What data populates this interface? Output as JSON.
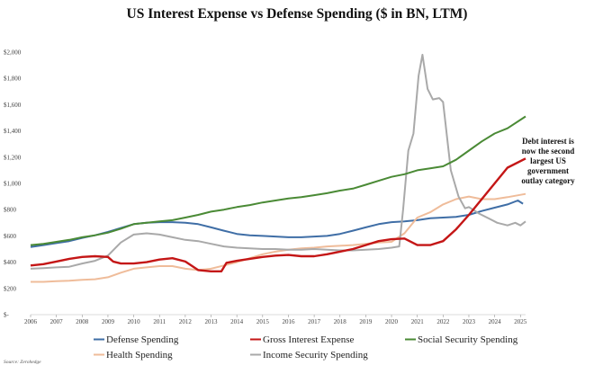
{
  "chart_data": {
    "type": "line",
    "title": "US Interest Expense vs Defense Spending ($ in BN, LTM)",
    "xlabel": "",
    "ylabel": "",
    "source": "Source: Zerohedge",
    "annotation": [
      "Debt interest is",
      "now the second",
      "largest US",
      "government",
      "outlay category"
    ],
    "xlim": [
      2006,
      2025.2
    ],
    "ylim": [
      0,
      2000
    ],
    "x_ticks": [
      "2006",
      "2007",
      "2008",
      "2009",
      "2010",
      "2011",
      "2012",
      "2013",
      "2014",
      "2015",
      "2016",
      "2017",
      "2018",
      "2019",
      "2020",
      "2021",
      "2022",
      "2023",
      "2024",
      "2025"
    ],
    "y_ticks": [
      {
        "v": 0,
        "label": "$-"
      },
      {
        "v": 200,
        "label": "$200"
      },
      {
        "v": 400,
        "label": "$400"
      },
      {
        "v": 600,
        "label": "$600"
      },
      {
        "v": 800,
        "label": "$800"
      },
      {
        "v": 1000,
        "label": "$1,000"
      },
      {
        "v": 1200,
        "label": "$1,200"
      },
      {
        "v": 1400,
        "label": "$1,400"
      },
      {
        "v": 1600,
        "label": "$1,600"
      },
      {
        "v": 1800,
        "label": "$1,800"
      },
      {
        "v": 2000,
        "label": "$2,000"
      }
    ],
    "grid": false,
    "legend_position": "bottom",
    "series": [
      {
        "name": "Defense Spending",
        "color": "#3f6ea6",
        "points": [
          [
            2006,
            515
          ],
          [
            2006.5,
            530
          ],
          [
            2007,
            545
          ],
          [
            2007.5,
            560
          ],
          [
            2008,
            585
          ],
          [
            2008.5,
            605
          ],
          [
            2009,
            630
          ],
          [
            2009.5,
            660
          ],
          [
            2010,
            690
          ],
          [
            2010.5,
            700
          ],
          [
            2011,
            705
          ],
          [
            2011.5,
            705
          ],
          [
            2012,
            700
          ],
          [
            2012.5,
            690
          ],
          [
            2013,
            665
          ],
          [
            2013.5,
            640
          ],
          [
            2014,
            615
          ],
          [
            2014.5,
            605
          ],
          [
            2015,
            600
          ],
          [
            2015.5,
            595
          ],
          [
            2016,
            590
          ],
          [
            2016.5,
            590
          ],
          [
            2017,
            595
          ],
          [
            2017.5,
            600
          ],
          [
            2018,
            615
          ],
          [
            2018.5,
            640
          ],
          [
            2019,
            665
          ],
          [
            2019.5,
            690
          ],
          [
            2020,
            705
          ],
          [
            2020.5,
            710
          ],
          [
            2021,
            720
          ],
          [
            2021.5,
            735
          ],
          [
            2022,
            740
          ],
          [
            2022.5,
            745
          ],
          [
            2023,
            760
          ],
          [
            2023.5,
            790
          ],
          [
            2024,
            815
          ],
          [
            2024.5,
            840
          ],
          [
            2024.9,
            870
          ],
          [
            2025.1,
            845
          ]
        ]
      },
      {
        "name": "Gross Interest Expense",
        "color": "#c41616",
        "points": [
          [
            2006,
            375
          ],
          [
            2006.5,
            385
          ],
          [
            2007,
            405
          ],
          [
            2007.5,
            425
          ],
          [
            2008,
            440
          ],
          [
            2008.5,
            445
          ],
          [
            2009,
            440
          ],
          [
            2009.2,
            405
          ],
          [
            2009.5,
            390
          ],
          [
            2010,
            390
          ],
          [
            2010.5,
            400
          ],
          [
            2011,
            420
          ],
          [
            2011.5,
            430
          ],
          [
            2012,
            405
          ],
          [
            2012.5,
            340
          ],
          [
            2013,
            330
          ],
          [
            2013.4,
            330
          ],
          [
            2013.6,
            395
          ],
          [
            2014,
            410
          ],
          [
            2014.5,
            425
          ],
          [
            2015,
            440
          ],
          [
            2015.5,
            450
          ],
          [
            2016,
            455
          ],
          [
            2016.5,
            445
          ],
          [
            2017,
            445
          ],
          [
            2017.5,
            460
          ],
          [
            2018,
            480
          ],
          [
            2018.5,
            500
          ],
          [
            2019,
            530
          ],
          [
            2019.5,
            560
          ],
          [
            2020,
            575
          ],
          [
            2020.5,
            580
          ],
          [
            2021,
            530
          ],
          [
            2021.5,
            530
          ],
          [
            2022,
            560
          ],
          [
            2022.5,
            650
          ],
          [
            2023,
            760
          ],
          [
            2023.5,
            880
          ],
          [
            2024,
            1000
          ],
          [
            2024.5,
            1120
          ],
          [
            2025.2,
            1190
          ]
        ]
      },
      {
        "name": "Social Security Spending",
        "color": "#4a8a35",
        "points": [
          [
            2006,
            530
          ],
          [
            2006.5,
            540
          ],
          [
            2007,
            555
          ],
          [
            2007.5,
            570
          ],
          [
            2008,
            590
          ],
          [
            2008.5,
            605
          ],
          [
            2009,
            625
          ],
          [
            2009.5,
            655
          ],
          [
            2010,
            690
          ],
          [
            2010.5,
            700
          ],
          [
            2011,
            710
          ],
          [
            2011.5,
            720
          ],
          [
            2012,
            740
          ],
          [
            2012.5,
            760
          ],
          [
            2013,
            785
          ],
          [
            2013.5,
            800
          ],
          [
            2014,
            820
          ],
          [
            2014.5,
            835
          ],
          [
            2015,
            855
          ],
          [
            2015.5,
            870
          ],
          [
            2016,
            885
          ],
          [
            2016.5,
            895
          ],
          [
            2017,
            910
          ],
          [
            2017.5,
            925
          ],
          [
            2018,
            945
          ],
          [
            2018.5,
            960
          ],
          [
            2019,
            990
          ],
          [
            2019.5,
            1020
          ],
          [
            2020,
            1050
          ],
          [
            2020.5,
            1070
          ],
          [
            2021,
            1100
          ],
          [
            2021.5,
            1115
          ],
          [
            2022,
            1130
          ],
          [
            2022.5,
            1180
          ],
          [
            2023,
            1250
          ],
          [
            2023.5,
            1320
          ],
          [
            2024,
            1380
          ],
          [
            2024.5,
            1420
          ],
          [
            2025.2,
            1510
          ]
        ]
      },
      {
        "name": "Health Spending",
        "color": "#efbc9a",
        "points": [
          [
            2006,
            250
          ],
          [
            2006.5,
            250
          ],
          [
            2007,
            255
          ],
          [
            2007.5,
            258
          ],
          [
            2008,
            265
          ],
          [
            2008.5,
            270
          ],
          [
            2009,
            285
          ],
          [
            2009.5,
            320
          ],
          [
            2010,
            350
          ],
          [
            2010.5,
            360
          ],
          [
            2011,
            370
          ],
          [
            2011.5,
            370
          ],
          [
            2012,
            350
          ],
          [
            2012.5,
            340
          ],
          [
            2013,
            350
          ],
          [
            2013.5,
            375
          ],
          [
            2014,
            400
          ],
          [
            2014.5,
            430
          ],
          [
            2015,
            460
          ],
          [
            2015.5,
            480
          ],
          [
            2016,
            495
          ],
          [
            2016.5,
            505
          ],
          [
            2017,
            510
          ],
          [
            2017.5,
            520
          ],
          [
            2018,
            525
          ],
          [
            2018.5,
            530
          ],
          [
            2019,
            540
          ],
          [
            2019.5,
            550
          ],
          [
            2020,
            555
          ],
          [
            2020.5,
            620
          ],
          [
            2021,
            740
          ],
          [
            2021.5,
            780
          ],
          [
            2022,
            840
          ],
          [
            2022.5,
            880
          ],
          [
            2023,
            900
          ],
          [
            2023.5,
            880
          ],
          [
            2024,
            880
          ],
          [
            2024.5,
            895
          ],
          [
            2025.2,
            920
          ]
        ]
      },
      {
        "name": "Income Security Spending",
        "color": "#a9a9a9",
        "points": [
          [
            2006,
            350
          ],
          [
            2006.5,
            355
          ],
          [
            2007,
            360
          ],
          [
            2007.5,
            365
          ],
          [
            2008,
            390
          ],
          [
            2008.5,
            410
          ],
          [
            2009,
            450
          ],
          [
            2009.5,
            550
          ],
          [
            2010,
            610
          ],
          [
            2010.5,
            620
          ],
          [
            2011,
            610
          ],
          [
            2011.5,
            590
          ],
          [
            2012,
            570
          ],
          [
            2012.5,
            560
          ],
          [
            2013,
            540
          ],
          [
            2013.5,
            520
          ],
          [
            2014,
            510
          ],
          [
            2014.5,
            505
          ],
          [
            2015,
            500
          ],
          [
            2015.5,
            500
          ],
          [
            2016,
            495
          ],
          [
            2016.5,
            495
          ],
          [
            2017,
            500
          ],
          [
            2017.5,
            495
          ],
          [
            2018,
            490
          ],
          [
            2018.5,
            490
          ],
          [
            2019,
            495
          ],
          [
            2019.5,
            500
          ],
          [
            2020,
            510
          ],
          [
            2020.3,
            520
          ],
          [
            2020.45,
            800
          ],
          [
            2020.65,
            1250
          ],
          [
            2020.85,
            1380
          ],
          [
            2021.05,
            1820
          ],
          [
            2021.2,
            1980
          ],
          [
            2021.4,
            1720
          ],
          [
            2021.6,
            1640
          ],
          [
            2021.85,
            1650
          ],
          [
            2022,
            1620
          ],
          [
            2022.3,
            1100
          ],
          [
            2022.6,
            900
          ],
          [
            2022.85,
            810
          ],
          [
            2023,
            820
          ],
          [
            2023.4,
            770
          ],
          [
            2023.8,
            730
          ],
          [
            2024.1,
            700
          ],
          [
            2024.5,
            680
          ],
          [
            2024.8,
            700
          ],
          [
            2025.0,
            680
          ],
          [
            2025.2,
            710
          ]
        ]
      }
    ]
  }
}
